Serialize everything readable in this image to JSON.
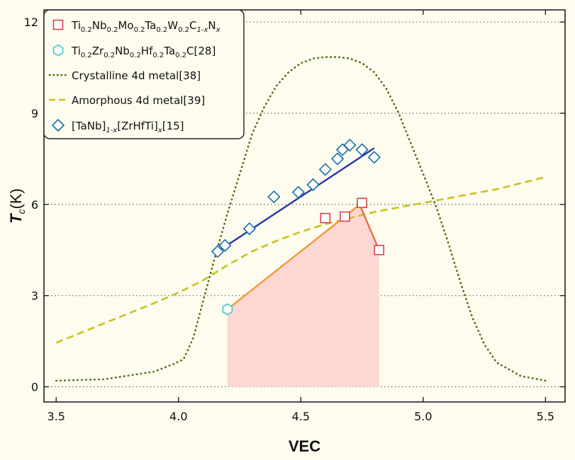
{
  "chart_data": {
    "type": "line",
    "xlabel": "VEC",
    "ylabel": "T",
    "ylabel_sub": "c",
    "ylabel_unit": "(K)",
    "xlim": [
      3.45,
      5.58
    ],
    "ylim": [
      -0.5,
      12.4
    ],
    "xticks": [
      3.5,
      4.0,
      4.5,
      5.0,
      5.5
    ],
    "xtick_labels": [
      "3.5",
      "4.0",
      "4.5",
      "5.0",
      "5.5"
    ],
    "yticks": [
      0,
      3,
      6,
      9,
      12
    ],
    "ytick_labels": [
      "0",
      "3",
      "6",
      "9",
      "12"
    ],
    "grid": "horizontal dotted",
    "legend_position": "top-left",
    "colors": {
      "background": "#fefcef",
      "squares": "#d9434a",
      "hexagon": "#3cc6c6",
      "crystalline": "#556b13",
      "amorphous": "#c9c21c",
      "diamonds": "#1a6fa3",
      "diamond_fit": "#2a35a8",
      "line_orange": "#f29a3a",
      "line_red": "#ee6a4a",
      "fill": "#fdd8d3"
    },
    "legend": [
      {
        "id": "squares",
        "parts": [
          [
            "Ti",
            ""
          ],
          [
            "0.2",
            "sub"
          ],
          [
            "Nb",
            ""
          ],
          [
            "0.2",
            "sub"
          ],
          [
            "Mo",
            ""
          ],
          [
            "0.2",
            "sub"
          ],
          [
            "Ta",
            ""
          ],
          [
            "0.2",
            "sub"
          ],
          [
            "W",
            ""
          ],
          [
            "0.2",
            "sub"
          ],
          [
            "C",
            ""
          ],
          [
            "1-x",
            "subi"
          ],
          [
            "N",
            ""
          ],
          [
            "x",
            "subi"
          ]
        ]
      },
      {
        "id": "hexagon",
        "parts": [
          [
            "Ti",
            ""
          ],
          [
            "0.2",
            "sub"
          ],
          [
            "Zr",
            ""
          ],
          [
            "0.2",
            "sub"
          ],
          [
            "Nb",
            ""
          ],
          [
            "0.2",
            "sub"
          ],
          [
            "Hf",
            ""
          ],
          [
            "0.2",
            "sub"
          ],
          [
            "Ta",
            ""
          ],
          [
            "0.2",
            "sub"
          ],
          [
            "C[28]",
            ""
          ]
        ]
      },
      {
        "id": "crystalline",
        "parts": [
          [
            "Crystalline 4d metal[38]",
            ""
          ]
        ]
      },
      {
        "id": "amorphous",
        "parts": [
          [
            "Amorphous 4d metal[39]",
            ""
          ]
        ]
      },
      {
        "id": "diamonds",
        "parts": [
          [
            "[TaNb]",
            ""
          ],
          [
            "1-x",
            "subi"
          ],
          [
            "[ZrHfTi]",
            ""
          ],
          [
            "x",
            "subi"
          ],
          [
            "[15]",
            ""
          ]
        ]
      }
    ],
    "series": [
      {
        "name": "Crystalline 4d metal[38]",
        "style": "dotted",
        "x": [
          3.5,
          3.7,
          3.9,
          3.98,
          4.02,
          4.06,
          4.1,
          4.15,
          4.2,
          4.25,
          4.3,
          4.35,
          4.4,
          4.45,
          4.5,
          4.55,
          4.6,
          4.65,
          4.7,
          4.75,
          4.8,
          4.85,
          4.9,
          4.95,
          5.0,
          5.05,
          5.1,
          5.15,
          5.2,
          5.25,
          5.3,
          5.4,
          5.5
        ],
        "y": [
          0.2,
          0.25,
          0.5,
          0.75,
          0.9,
          1.6,
          2.8,
          4.3,
          5.7,
          7.0,
          8.3,
          9.2,
          9.9,
          10.35,
          10.65,
          10.8,
          10.85,
          10.85,
          10.8,
          10.65,
          10.35,
          9.8,
          9.0,
          8.0,
          7.0,
          6.0,
          4.8,
          3.5,
          2.3,
          1.4,
          0.8,
          0.35,
          0.2
        ]
      },
      {
        "name": "Amorphous 4d metal[39]",
        "style": "dashed",
        "x": [
          3.5,
          3.7,
          3.9,
          4.0,
          4.1,
          4.2,
          4.3,
          4.4,
          4.5,
          4.6,
          4.7,
          4.8,
          4.9,
          5.0,
          5.1,
          5.2,
          5.3,
          5.4,
          5.5
        ],
        "y": [
          1.45,
          2.1,
          2.75,
          3.1,
          3.5,
          4.0,
          4.45,
          4.8,
          5.1,
          5.35,
          5.55,
          5.75,
          5.9,
          6.05,
          6.2,
          6.35,
          6.5,
          6.7,
          6.9
        ]
      },
      {
        "name": "[TaNb]1-x[ZrHfTi]x[15]",
        "marker": "diamond",
        "x": [
          4.16,
          4.19,
          4.29,
          4.39,
          4.49,
          4.55,
          4.6,
          4.65,
          4.67,
          4.7,
          4.75,
          4.8
        ],
        "y": [
          4.45,
          4.65,
          5.2,
          6.25,
          6.4,
          6.65,
          7.15,
          7.5,
          7.8,
          7.95,
          7.8,
          7.55
        ],
        "fit_x": [
          4.16,
          4.8
        ],
        "fit_y": [
          4.45,
          7.85
        ]
      },
      {
        "name": "Ti0.2Nb0.2Mo0.2Ta0.2W0.2C1-xNx",
        "marker": "square",
        "x": [
          4.6,
          4.68,
          4.75,
          4.82
        ],
        "y": [
          5.55,
          5.6,
          6.05,
          4.5
        ]
      },
      {
        "name": "Ti0.2Zr0.2Nb0.2Hf0.2Ta0.2C[28]",
        "marker": "hexagon",
        "x": [
          4.2
        ],
        "y": [
          2.55
        ]
      }
    ],
    "trend_line_orange": {
      "x": [
        4.2,
        4.68,
        4.74
      ],
      "y": [
        2.55,
        5.6,
        6.0
      ]
    },
    "trend_line_red": {
      "x": [
        4.74,
        4.82
      ],
      "y": [
        6.0,
        4.5
      ]
    },
    "shaded_region": {
      "x": [
        4.2,
        4.68,
        4.74,
        4.82
      ],
      "y": [
        2.55,
        5.6,
        6.0,
        4.5
      ]
    }
  }
}
